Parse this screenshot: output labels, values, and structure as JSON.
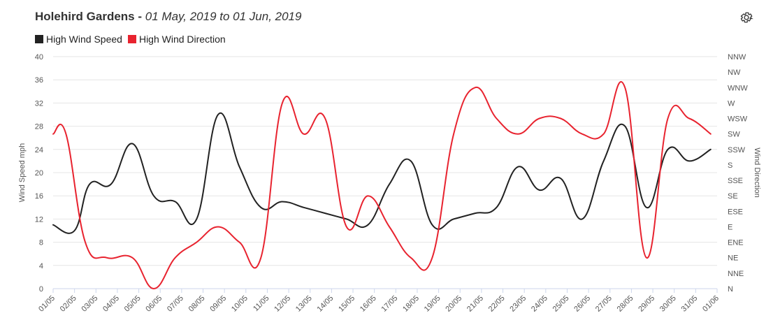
{
  "header": {
    "place": "Holehird Gardens",
    "separator": "-",
    "date_range": "01 May, 2019 to 01 Jun, 2019"
  },
  "settings_icon": "gear-icon",
  "colors": {
    "speed": "#222222",
    "direction": "#e8232f",
    "grid": "#e6e6e6"
  },
  "chart_data": {
    "type": "line",
    "categories": [
      "01/05",
      "02/05",
      "03/05",
      "04/05",
      "05/05",
      "06/05",
      "07/05",
      "08/05",
      "09/05",
      "10/05",
      "11/05",
      "12/05",
      "13/05",
      "14/05",
      "15/05",
      "16/05",
      "17/05",
      "18/05",
      "19/05",
      "20/05",
      "21/05",
      "22/05",
      "23/05",
      "24/05",
      "25/05",
      "26/05",
      "27/05",
      "28/05",
      "29/05",
      "30/05",
      "31/05",
      "01/06"
    ],
    "legend": [
      "High Wind Speed",
      "High Wind Direction"
    ],
    "y_left": {
      "label": "Wind Speed mph",
      "ticks": [
        "0",
        "4",
        "8",
        "12",
        "16",
        "20",
        "24",
        "28",
        "32",
        "36",
        "40"
      ],
      "min": 0,
      "max": 40
    },
    "y_right": {
      "label": "Wind Direction",
      "ticks": [
        "N",
        "NNE",
        "NE",
        "ENE",
        "E",
        "ESE",
        "SE",
        "SSE",
        "S",
        "SSW",
        "SW",
        "WSW",
        "W",
        "WNW",
        "NW",
        "NNW"
      ]
    },
    "series": [
      {
        "name": "High Wind Speed",
        "axis": "left",
        "points": [
          [
            0,
            11
          ],
          [
            1,
            10
          ],
          [
            1.7,
            18
          ],
          [
            2.7,
            18
          ],
          [
            3.7,
            25
          ],
          [
            4.7,
            16
          ],
          [
            5.7,
            15
          ],
          [
            6.7,
            12
          ],
          [
            7.7,
            30
          ],
          [
            8.7,
            21
          ],
          [
            9.7,
            14
          ],
          [
            10.7,
            15
          ],
          [
            11.7,
            14
          ],
          [
            12.7,
            13
          ],
          [
            13.7,
            12
          ],
          [
            14.7,
            11
          ],
          [
            15.7,
            18
          ],
          [
            16.7,
            22
          ],
          [
            17.7,
            11
          ],
          [
            18.7,
            12
          ],
          [
            19.7,
            13
          ],
          [
            20.7,
            14
          ],
          [
            21.7,
            21
          ],
          [
            22.7,
            17
          ],
          [
            23.7,
            19
          ],
          [
            24.7,
            12
          ],
          [
            25.7,
            22
          ],
          [
            26.7,
            28
          ],
          [
            27.7,
            14
          ],
          [
            28.7,
            24
          ],
          [
            29.7,
            22
          ],
          [
            30.7,
            24
          ]
        ]
      },
      {
        "name": "High Wind Direction",
        "axis": "right",
        "points": [
          [
            0,
            10
          ],
          [
            0.6,
            10
          ],
          [
            1.5,
            3
          ],
          [
            2.5,
            2
          ],
          [
            3.7,
            2
          ],
          [
            4.7,
            0
          ],
          [
            5.7,
            2
          ],
          [
            6.7,
            3
          ],
          [
            7.7,
            4
          ],
          [
            8.7,
            3
          ],
          [
            9.7,
            2
          ],
          [
            10.7,
            12
          ],
          [
            11.7,
            10
          ],
          [
            12.7,
            11
          ],
          [
            13.7,
            4
          ],
          [
            14.7,
            6
          ],
          [
            15.7,
            4
          ],
          [
            16.7,
            2
          ],
          [
            17.7,
            2
          ],
          [
            18.7,
            10
          ],
          [
            19.7,
            13
          ],
          [
            20.7,
            11
          ],
          [
            21.7,
            10
          ],
          [
            22.7,
            11
          ],
          [
            23.7,
            11
          ],
          [
            24.7,
            10
          ],
          [
            25.7,
            10
          ],
          [
            26.7,
            13
          ],
          [
            27.7,
            2
          ],
          [
            28.7,
            11
          ],
          [
            29.7,
            11
          ],
          [
            30.7,
            10
          ]
        ]
      }
    ]
  }
}
